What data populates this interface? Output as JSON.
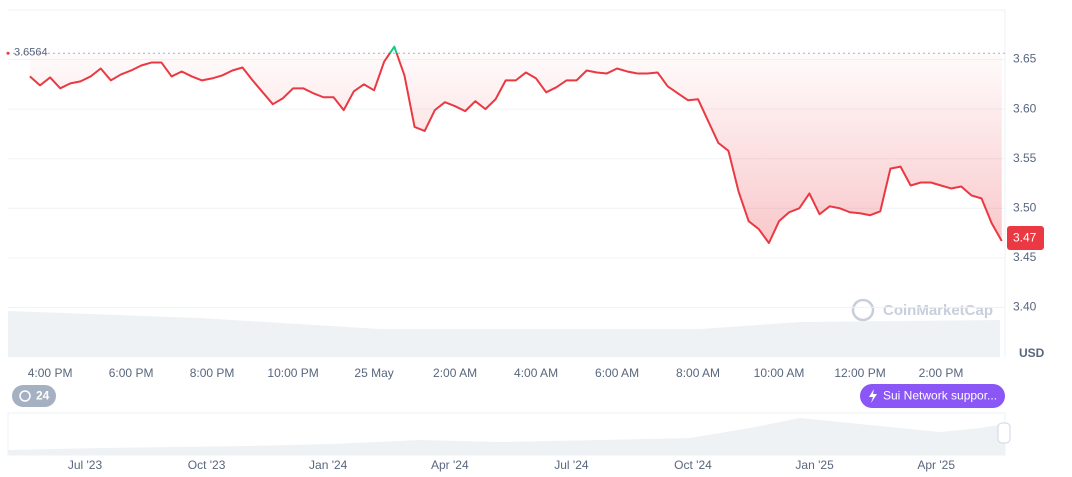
{
  "chart_data": {
    "type": "line",
    "x": [
      15.5,
      15.75,
      16,
      16.25,
      16.5,
      16.75,
      17,
      17.25,
      17.5,
      17.75,
      18,
      18.25,
      18.5,
      18.75,
      19,
      19.25,
      19.5,
      19.75,
      20,
      20.25,
      20.5,
      20.75,
      21,
      21.25,
      21.5,
      21.75,
      22,
      22.25,
      22.5,
      22.75,
      23,
      23.25,
      23.5,
      23.75,
      24,
      24.25,
      24.5,
      24.75,
      25,
      25.25,
      25.5,
      25.75,
      26,
      26.25,
      26.5,
      26.75,
      27,
      27.25,
      27.5,
      27.75,
      28,
      28.25,
      28.5,
      28.75,
      29,
      29.25,
      29.5,
      29.75,
      30,
      30.25,
      30.5,
      30.75,
      31,
      31.25,
      31.5,
      31.75,
      32,
      32.25,
      32.5,
      32.75,
      33,
      33.25,
      33.5,
      33.75,
      34,
      34.25,
      34.5,
      34.75,
      35,
      35.25,
      35.5,
      35.75,
      36,
      36.25,
      36.5,
      36.75,
      37,
      37.25,
      37.5,
      37.75,
      38,
      38.25,
      38.5,
      38.75,
      39,
      39.25,
      39.5
    ],
    "values": [
      3.633,
      3.624,
      3.632,
      3.621,
      3.626,
      3.628,
      3.633,
      3.641,
      3.629,
      3.635,
      3.639,
      3.644,
      3.647,
      3.647,
      3.633,
      3.638,
      3.633,
      3.629,
      3.631,
      3.634,
      3.639,
      3.642,
      3.629,
      3.617,
      3.605,
      3.611,
      3.621,
      3.621,
      3.616,
      3.612,
      3.612,
      3.599,
      3.618,
      3.625,
      3.619,
      3.648,
      3.663,
      3.634,
      3.582,
      3.578,
      3.599,
      3.607,
      3.603,
      3.598,
      3.608,
      3.6,
      3.61,
      3.629,
      3.629,
      3.637,
      3.631,
      3.617,
      3.622,
      3.629,
      3.629,
      3.639,
      3.637,
      3.636,
      3.641,
      3.638,
      3.636,
      3.636,
      3.637,
      3.623,
      3.616,
      3.609,
      3.61,
      3.588,
      3.566,
      3.558,
      3.517,
      3.487,
      3.479,
      3.465,
      3.487,
      3.496,
      3.5,
      3.515,
      3.494,
      3.502,
      3.5,
      3.496,
      3.495,
      3.493,
      3.497,
      3.54,
      3.542,
      3.523,
      3.526,
      3.526,
      3.523,
      3.52,
      3.522,
      3.513,
      3.51,
      3.485,
      3.467
    ],
    "color": "#ea3943",
    "above_color": "#16c784",
    "reference_line": 3.6564,
    "current_price": 3.47,
    "xlim": [
      14.96,
      39.58
    ],
    "xticks": [
      {
        "value": 16,
        "label": "4:00 PM"
      },
      {
        "value": 18,
        "label": "6:00 PM"
      },
      {
        "value": 20,
        "label": "8:00 PM"
      },
      {
        "value": 22,
        "label": "10:00 PM"
      },
      {
        "value": 24,
        "label": "25 May"
      },
      {
        "value": 26,
        "label": "2:00 AM"
      },
      {
        "value": 28,
        "label": "4:00 AM"
      },
      {
        "value": 30,
        "label": "6:00 AM"
      },
      {
        "value": 32,
        "label": "8:00 AM"
      },
      {
        "value": 34,
        "label": "10:00 AM"
      },
      {
        "value": 36,
        "label": "12:00 PM"
      },
      {
        "value": 38,
        "label": "2:00 PM"
      }
    ],
    "ylim": [
      3.35,
      3.7
    ],
    "yticks": [
      {
        "value": 3.4,
        "label": "3.40"
      },
      3.45,
      {
        "value": 3.5,
        "label": "3.50"
      },
      3.55,
      {
        "value": 3.6,
        "label": "3.60"
      },
      3.65
    ],
    "y_unit": "USD",
    "grid": true,
    "watermark": "CoinMarketCap",
    "badge": "24",
    "event_label": "Sui Network suppor...",
    "navigator": {
      "categories": [
        "Jul '23",
        "Oct '23",
        "Jan '24",
        "Apr '24",
        "Jul '24",
        "Oct '24",
        "Jan '25",
        "Apr '25"
      ]
    }
  }
}
